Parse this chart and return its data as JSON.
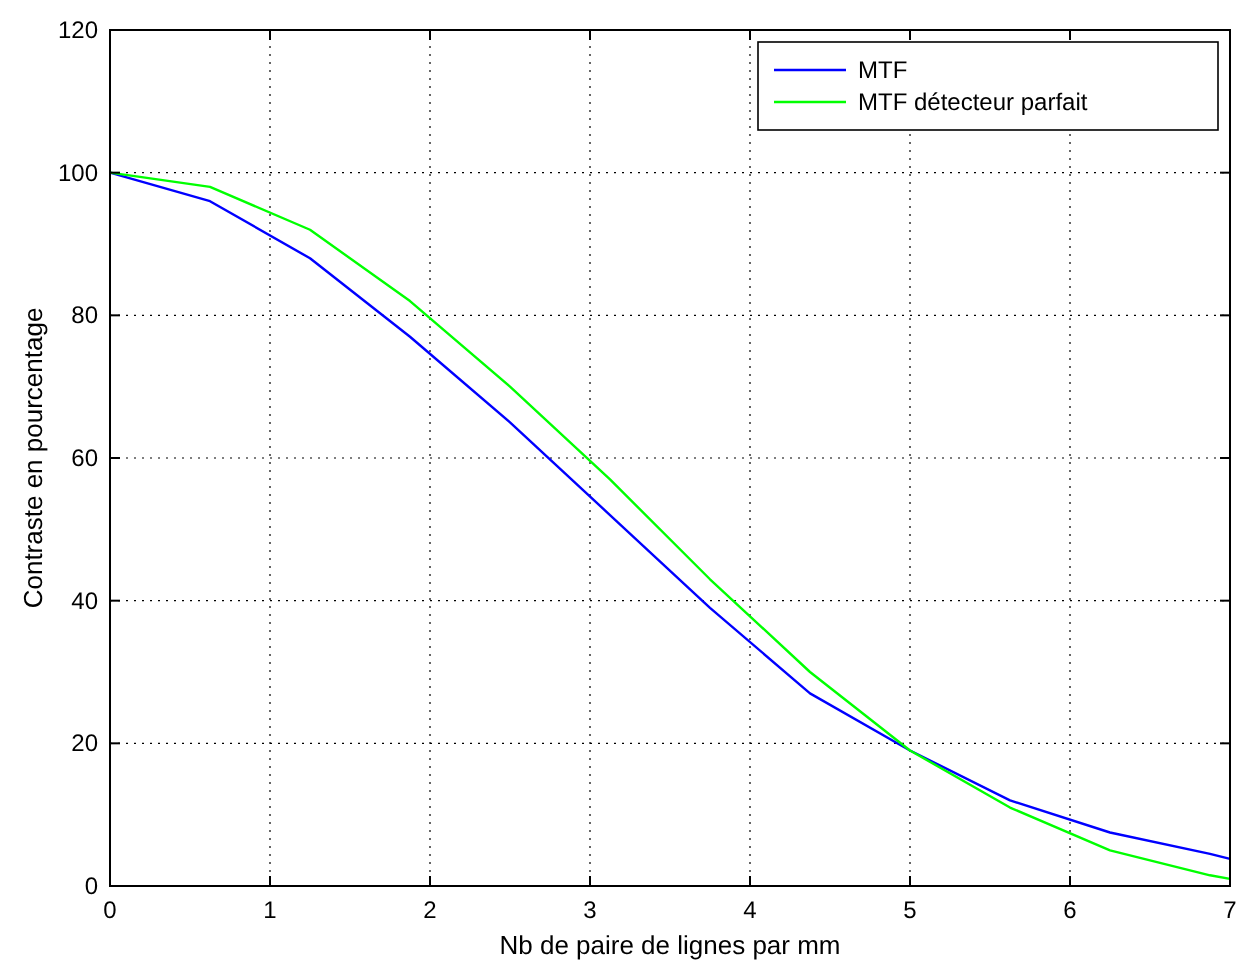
{
  "chart_data": {
    "type": "line",
    "xlabel": "Nb de paire de lignes par mm",
    "ylabel": "Contraste en pourcentage",
    "xlim": [
      0,
      7
    ],
    "xticks": [
      0,
      1,
      2,
      3,
      4,
      5,
      6,
      7
    ],
    "ylim": [
      0,
      120
    ],
    "yticks": [
      0,
      20,
      40,
      60,
      80,
      100,
      120
    ],
    "grid": true,
    "legend": "top right",
    "marker": "none",
    "line_style": "solid",
    "x": [
      0,
      0.625,
      1.25,
      1.875,
      2.5,
      3.125,
      3.75,
      4.375,
      5,
      5.625,
      6.25,
      6.875,
      7
    ],
    "series": [
      {
        "name": "MTF",
        "color": "#0000ff",
        "values": [
          100,
          96,
          88,
          77,
          65,
          52,
          39,
          27,
          19,
          12,
          7.5,
          4.5,
          3.8
        ]
      },
      {
        "name": "MTF détecteur parfait",
        "color": "#00ff00",
        "values": [
          100,
          98,
          92,
          82,
          70,
          57,
          43,
          30,
          19,
          11,
          5,
          1.5,
          1
        ]
      }
    ]
  }
}
